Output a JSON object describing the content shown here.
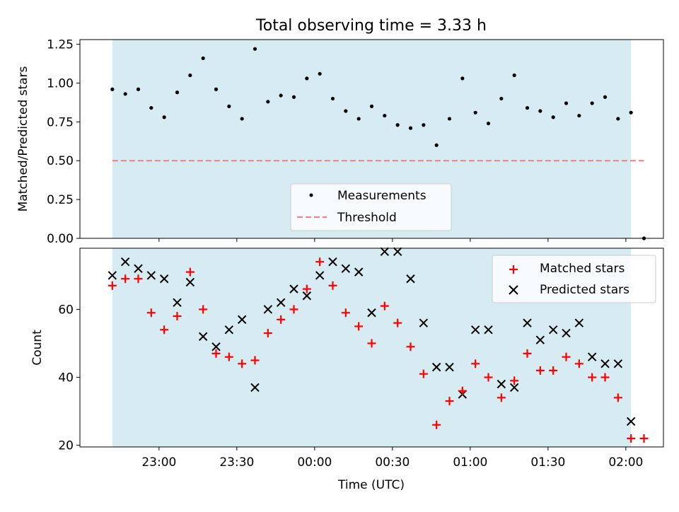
{
  "chart_data": [
    {
      "type": "scatter",
      "title": "Total observing time = 3.33 h",
      "xlabel": "",
      "ylabel": "Matched/Predicted stars",
      "ylim": [
        0,
        1.28
      ],
      "yticks": [
        "0.00",
        "0.25",
        "0.50",
        "0.75",
        "1.00",
        "1.25"
      ],
      "ytick_values": [
        0,
        0.25,
        0.5,
        0.75,
        1.0,
        1.25
      ],
      "shaded_interval": [
        "22:42",
        "02:02"
      ],
      "legend": {
        "position": "lower-center",
        "entries": [
          "Measurements",
          "Threshold"
        ]
      },
      "threshold": {
        "name": "Threshold",
        "value": 0.5,
        "x_start": "22:42",
        "x_end": "02:07",
        "color": "#f08080"
      },
      "series": [
        {
          "name": "Measurements",
          "color": "#000000",
          "x": [
            "22:42",
            "22:47",
            "22:52",
            "22:57",
            "23:02",
            "23:07",
            "23:12",
            "23:17",
            "23:22",
            "23:27",
            "23:32",
            "23:37",
            "23:42",
            "23:47",
            "23:52",
            "23:57",
            "00:02",
            "00:07",
            "00:12",
            "00:17",
            "00:22",
            "00:27",
            "00:32",
            "00:37",
            "00:42",
            "00:47",
            "00:52",
            "00:57",
            "01:02",
            "01:07",
            "01:12",
            "01:17",
            "01:22",
            "01:27",
            "01:32",
            "01:37",
            "01:42",
            "01:47",
            "01:52",
            "01:57",
            "02:02",
            "02:07"
          ],
          "y": [
            0.96,
            0.93,
            0.96,
            0.84,
            0.78,
            0.94,
            1.05,
            1.16,
            0.96,
            0.85,
            0.77,
            1.22,
            0.88,
            0.92,
            0.91,
            1.03,
            1.06,
            0.9,
            0.82,
            0.77,
            0.85,
            0.79,
            0.73,
            0.71,
            0.73,
            0.6,
            0.77,
            1.03,
            0.81,
            0.74,
            0.9,
            1.05,
            0.84,
            0.82,
            0.78,
            0.87,
            0.79,
            0.87,
            0.91,
            0.77,
            0.81,
            0.0
          ]
        }
      ]
    },
    {
      "type": "scatter",
      "title": "",
      "xlabel": "Time (UTC)",
      "ylabel": "Count",
      "ylim": [
        19.5,
        78
      ],
      "yticks": [
        "20",
        "40",
        "60"
      ],
      "ytick_values": [
        20,
        40,
        60
      ],
      "xticks": [
        "23:00",
        "23:30",
        "00:00",
        "00:30",
        "01:00",
        "01:30",
        "02:00"
      ],
      "shaded_interval": [
        "22:42",
        "02:02"
      ],
      "legend": {
        "position": "top-right",
        "entries": [
          "Matched stars",
          "Predicted stars"
        ]
      },
      "series": [
        {
          "name": "Matched stars",
          "marker": "plus",
          "color": "#ff0000",
          "x": [
            "22:42",
            "22:47",
            "22:52",
            "22:57",
            "23:02",
            "23:07",
            "23:12",
            "23:17",
            "23:22",
            "23:27",
            "23:32",
            "23:37",
            "23:42",
            "23:47",
            "23:52",
            "23:57",
            "00:02",
            "00:07",
            "00:12",
            "00:17",
            "00:22",
            "00:27",
            "00:32",
            "00:37",
            "00:42",
            "00:47",
            "00:52",
            "00:57",
            "01:02",
            "01:07",
            "01:12",
            "01:17",
            "01:22",
            "01:27",
            "01:32",
            "01:37",
            "01:42",
            "01:47",
            "01:52",
            "01:57",
            "02:02",
            "02:07"
          ],
          "y": [
            67,
            69,
            69,
            59,
            54,
            58,
            71,
            60,
            47,
            46,
            44,
            45,
            53,
            57,
            60,
            66,
            74,
            67,
            59,
            55,
            50,
            61,
            56,
            49,
            41,
            26,
            33,
            36,
            44,
            40,
            34,
            39,
            47,
            42,
            42,
            46,
            44,
            40,
            40,
            34,
            22,
            22
          ]
        },
        {
          "name": "Predicted stars",
          "marker": "x",
          "color": "#000000",
          "x": [
            "22:42",
            "22:47",
            "22:52",
            "22:57",
            "23:02",
            "23:07",
            "23:12",
            "23:17",
            "23:22",
            "23:27",
            "23:32",
            "23:37",
            "23:42",
            "23:47",
            "23:52",
            "23:57",
            "00:02",
            "00:07",
            "00:12",
            "00:17",
            "00:22",
            "00:27",
            "00:32",
            "00:37",
            "00:42",
            "00:47",
            "00:52",
            "00:57",
            "01:02",
            "01:07",
            "01:12",
            "01:17",
            "01:22",
            "01:27",
            "01:32",
            "01:37",
            "01:42",
            "01:47",
            "01:52",
            "01:57",
            "02:02"
          ],
          "y": [
            70,
            74,
            72,
            70,
            69,
            62,
            68,
            52,
            49,
            54,
            57,
            37,
            60,
            62,
            66,
            64,
            70,
            74,
            72,
            71,
            59,
            77,
            77,
            69,
            56,
            43,
            43,
            35,
            54,
            54,
            38,
            37,
            56,
            51,
            54,
            53,
            56,
            46,
            44,
            44,
            27
          ]
        }
      ]
    }
  ]
}
